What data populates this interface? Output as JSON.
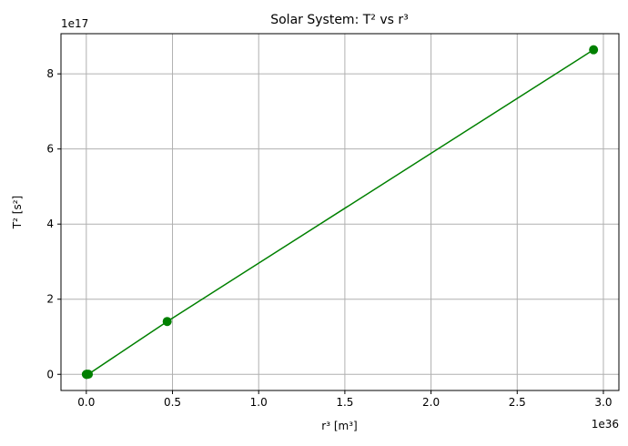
{
  "chart_data": {
    "type": "line",
    "title": "Solar System: T² vs r³",
    "xlabel": "r³ [m³]",
    "ylabel": "T² [s²]",
    "x_offset_text": "1e36",
    "y_offset_text": "1e17",
    "x_ticks": [
      0.0,
      0.5,
      1.0,
      1.5,
      2.0,
      2.5,
      3.0
    ],
    "x_tick_labels": [
      "0.0",
      "0.5",
      "1.0",
      "1.5",
      "2.0",
      "2.5",
      "3.0"
    ],
    "y_ticks": [
      0,
      2,
      4,
      6,
      8
    ],
    "y_tick_labels": [
      "0",
      "2",
      "4",
      "6",
      "8"
    ],
    "xlim": [
      -0.147,
      3.09
    ],
    "ylim": [
      -0.43,
      9.07
    ],
    "grid": true,
    "series": [
      {
        "color": "#008000",
        "marker": "circle",
        "x": [
          0.00019,
          0.00143,
          0.00336,
          0.01184,
          0.4692,
          2.943
        ],
        "y": [
          5.6e-05,
          0.000378,
          0.000995,
          0.003538,
          1.407,
          8.642
        ]
      }
    ]
  }
}
